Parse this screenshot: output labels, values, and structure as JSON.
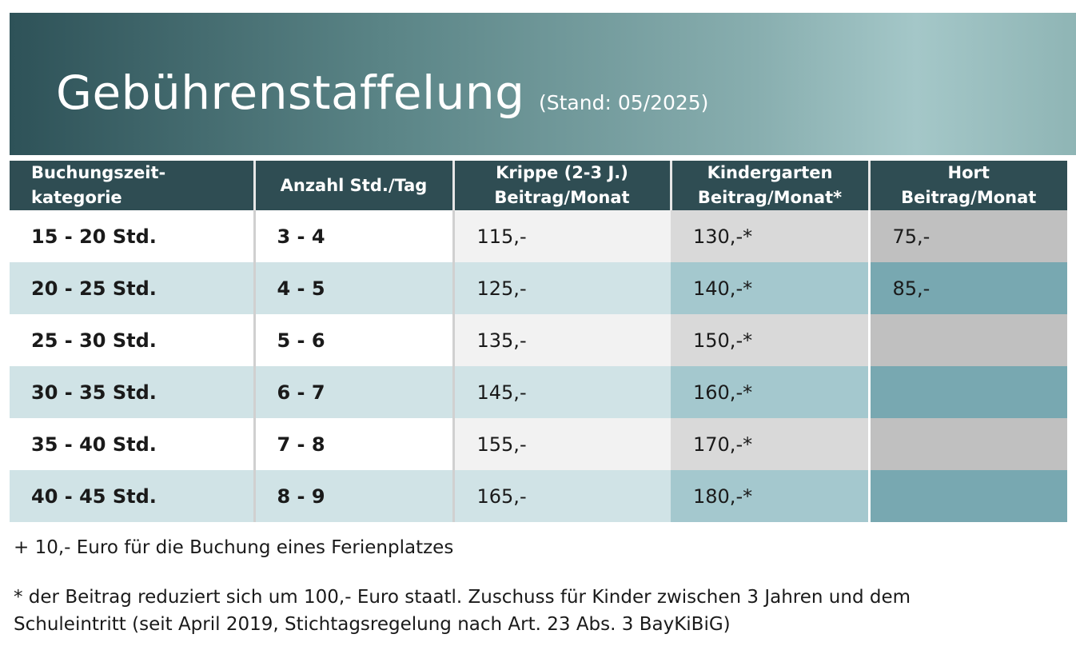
{
  "header": {
    "title": "Gebührenstaffelung",
    "stand": "(Stand: 05/2025)"
  },
  "table": {
    "columns": [
      {
        "line1": "Buchungszeit-",
        "line2": "kategorie"
      },
      {
        "line1": "Anzahl Std./Tag",
        "line2": ""
      },
      {
        "line1": "Krippe (2-3 J.)",
        "line2": "Beitrag/Monat"
      },
      {
        "line1": "Kindergarten",
        "line2": "Beitrag/Monat*"
      },
      {
        "line1": "Hort",
        "line2": "Beitrag/Monat"
      }
    ],
    "rows": [
      {
        "kategorie": "15 - 20 Std.",
        "stunden": "3 - 4",
        "krippe": "115,-",
        "kindergarten": "130,-*",
        "hort": "75,-"
      },
      {
        "kategorie": "20 - 25 Std.",
        "stunden": "4 - 5",
        "krippe": "125,-",
        "kindergarten": "140,-*",
        "hort": "85,-"
      },
      {
        "kategorie": "25 - 30 Std.",
        "stunden": "5 - 6",
        "krippe": "135,-",
        "kindergarten": "150,-*",
        "hort": ""
      },
      {
        "kategorie": "30 - 35 Std.",
        "stunden": "6 - 7",
        "krippe": "145,-",
        "kindergarten": "160,-*",
        "hort": ""
      },
      {
        "kategorie": "35 - 40 Std.",
        "stunden": "7 - 8",
        "krippe": "155,-",
        "kindergarten": "170,-*",
        "hort": ""
      },
      {
        "kategorie": "40 - 45 Std.",
        "stunden": "8 - 9",
        "krippe": "165,-",
        "kindergarten": "180,-*",
        "hort": ""
      }
    ]
  },
  "notes": {
    "ferien": "+ 10,- Euro für die Buchung eines Ferienplatzes",
    "zuschuss_line1": "* der Beitrag reduziert sich um 100,- Euro staatl. Zuschuss für Kinder zwischen 3 Jahren und dem",
    "zuschuss_line2": "Schuleintritt (seit April 2019, Stichtagsregelung nach Art. 23 Abs. 3 BayKiBiG)"
  },
  "colors": {
    "header_bg": "#2f4d53",
    "row_even_teal": "#d0e3e6",
    "hort_teal": "#78a8b1"
  }
}
